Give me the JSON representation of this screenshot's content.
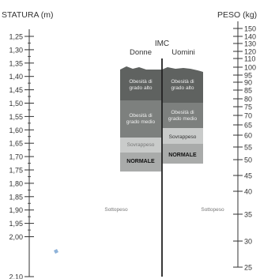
{
  "left_axis": {
    "title": "STATURA (m)",
    "ticks": [
      "1,25",
      "1,30",
      "1,35",
      "1,40",
      "1,45",
      "1,50",
      "1,55",
      "1,60",
      "1,65",
      "1,70",
      "1,75",
      "1,80",
      "1,85",
      "1,90",
      "1,95",
      "2,00",
      "2,10"
    ]
  },
  "right_axis": {
    "title": "PESO (kg)",
    "ticks": [
      "150",
      "140",
      "130",
      "120",
      "110",
      "100",
      "95",
      "90",
      "85",
      "80",
      "75",
      "70",
      "65",
      "60",
      "55",
      "50",
      "45",
      "40",
      "35",
      "30",
      "25"
    ]
  },
  "chart": {
    "title": "IMC",
    "women_label": "Donne",
    "men_label": "Uomini"
  },
  "bands": {
    "women": {
      "obese_high": "Obesità di grado alto",
      "obese_mid": "Obesità di grado medio",
      "overweight": "Sovrappeso",
      "normal": "NORMALE",
      "underweight": "Sottopeso"
    },
    "men": {
      "obese_high": "Obesità di grado alto",
      "obese_mid": "Obesità di grado medio",
      "overweight": "Sovrappeso",
      "normal": "NORMALE",
      "underweight": "Sottopeso"
    }
  },
  "colors": {
    "obese_high": "#5f6260",
    "obese_mid": "#7d807e",
    "overweight": "#c9cbca",
    "normal": "#a9abaa",
    "center_line": "#222222",
    "marker": "#8fb3d9"
  }
}
